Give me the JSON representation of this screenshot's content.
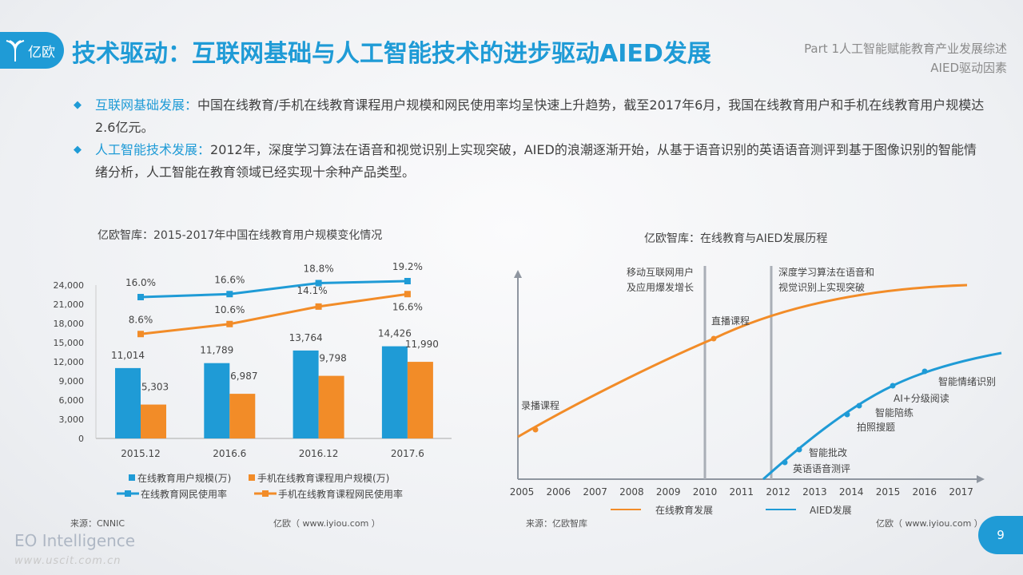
{
  "header": {
    "logo_text": "亿欧",
    "title": "技术驱动：互联网基础与人工智能技术的进步驱动AIED发展",
    "part": "Part 1人工智能赋能教育产业发展综述",
    "section": "AIED驱动因素"
  },
  "bullets": [
    {
      "label": "互联网基础发展：",
      "text": "中国在线教育/手机在线教育课程用户规模和网民使用率均呈快速上升趋势，截至2017年6月，我国在线教育用户和手机在线教育用户规模达2.6亿元。"
    },
    {
      "label": "人工智能技术发展：",
      "text": "2012年，深度学习算法在语音和视觉识别上实现突破，AIED的浪潮逐渐开始，从基于语音识别的英语语音测评到基于图像识别的智能情绪分析，人工智能在教育领域已经实现十余种产品类型。"
    }
  ],
  "colors": {
    "accent": "#1f9bd6",
    "orange": "#f28c28",
    "gray_line": "#a9aeb6"
  },
  "chart_data": [
    {
      "type": "bar",
      "title": "亿欧智库：2015-2017年中国在线教育用户规模变化情况",
      "categories": [
        "2015.12",
        "2016.6",
        "2016.12",
        "2017.6"
      ],
      "ylim": [
        0,
        24000
      ],
      "yticks": [
        "0",
        "3,000",
        "6,000",
        "9,000",
        "12,000",
        "15,000",
        "18,000",
        "21,000",
        "24,000"
      ],
      "series": [
        {
          "name": "在线教育用户规模(万)",
          "kind": "bar",
          "values": [
            11014,
            11789,
            13764,
            14426
          ],
          "labels": [
            "11,014",
            "11,789",
            "13,764",
            "14,426"
          ]
        },
        {
          "name": "手机在线教育课程用户规模(万)",
          "kind": "bar",
          "values": [
            5303,
            6987,
            9798,
            11990
          ],
          "labels": [
            "5,303",
            "6,987",
            "9,798",
            "11,990"
          ]
        },
        {
          "name": "在线教育网民使用率",
          "kind": "line",
          "values": [
            16.0,
            16.6,
            18.8,
            19.2
          ],
          "labels": [
            "16.0%",
            "16.6%",
            "18.8%",
            "19.2%"
          ]
        },
        {
          "name": "手机在线教育课程网民使用率",
          "kind": "line",
          "values": [
            8.6,
            10.6,
            14.1,
            16.6
          ],
          "labels": [
            "8.6%",
            "10.6%",
            "14.1%",
            "16.6%"
          ]
        }
      ],
      "source": "来源：CNNIC",
      "credit": "亿欧（ www.iyiou.com ）"
    },
    {
      "type": "line",
      "title": "亿欧智库：在线教育与AIED发展历程",
      "x": [
        "2005",
        "2006",
        "2007",
        "2008",
        "2009",
        "2010",
        "2011",
        "2012",
        "2013",
        "2014",
        "2015",
        "2016",
        "2017"
      ],
      "series": [
        {
          "name": "在线教育发展"
        },
        {
          "name": "AIED发展"
        }
      ],
      "events": [
        {
          "year": "2010",
          "label": "移动互联网用户及应用爆发增长",
          "line1": "移动互联网用户",
          "line2": "及应用爆发增长"
        },
        {
          "year": "2012",
          "label": "深度学习算法在语音和视觉识别上实现突破",
          "line1": "深度学习算法在语音和",
          "line2": "视觉识别上实现突破"
        }
      ],
      "milestones": [
        {
          "series": "在线教育发展",
          "label": "录播课程"
        },
        {
          "series": "在线教育发展",
          "label": "直播课程"
        },
        {
          "series": "AIED发展",
          "label": "英语语音测评"
        },
        {
          "series": "AIED发展",
          "label": "智能批改"
        },
        {
          "series": "AIED发展",
          "label": "拍照搜题"
        },
        {
          "series": "AIED发展",
          "label": "智能陪练"
        },
        {
          "series": "AIED发展",
          "label": "AI+分级阅读"
        },
        {
          "series": "AIED发展",
          "label": "智能情绪识别"
        }
      ],
      "source": "来源：亿欧智库",
      "credit": "亿欧（ www.iyiou.com ）"
    }
  ],
  "footer": {
    "brand": "EO Intelligence",
    "watermark": "www.uscit.com.cn",
    "page": "9"
  }
}
